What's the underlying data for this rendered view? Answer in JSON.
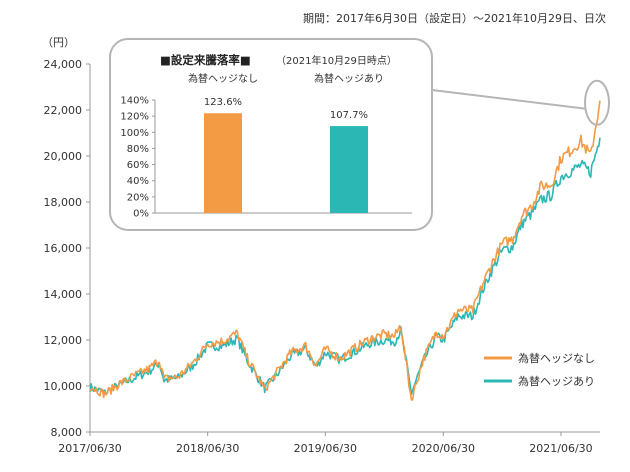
{
  "header": {
    "period": "期間：2017年6月30日（設定日）～2021年10月29日、日次"
  },
  "chart_data": [
    {
      "type": "line",
      "title": "",
      "ylabel": "（円）",
      "xlabel": "",
      "ylim": [
        8000,
        24000
      ],
      "y_ticks": [
        8000,
        10000,
        12000,
        14000,
        16000,
        18000,
        20000,
        22000,
        24000
      ],
      "y_tick_labels": [
        "8,000",
        "10,000",
        "12,000",
        "14,000",
        "16,000",
        "18,000",
        "20,000",
        "22,000",
        "24,000"
      ],
      "x_tick_labels": [
        "2017/06/30",
        "2018/06/30",
        "2019/06/30",
        "2020/06/30",
        "2021/06/30"
      ],
      "x_range": [
        "2017/06/30",
        "2021/10/29"
      ],
      "grid": false,
      "legend": "bottom-right",
      "series": [
        {
          "name": "為替ヘッジなし",
          "color": "#f39a45",
          "x": [
            "2017/06/30",
            "2017/08/15",
            "2017/09/30",
            "2017/11/15",
            "2017/12/31",
            "2018/01/31",
            "2018/02/15",
            "2018/03/31",
            "2018/05/15",
            "2018/06/30",
            "2018/08/15",
            "2018/09/30",
            "2018/10/31",
            "2018/12/24",
            "2019/01/31",
            "2019/03/15",
            "2019/04/30",
            "2019/06/01",
            "2019/06/30",
            "2019/08/15",
            "2019/09/30",
            "2019/11/15",
            "2019/12/31",
            "2020/01/31",
            "2020/02/19",
            "2020/03/23",
            "2020/04/30",
            "2020/06/08",
            "2020/06/30",
            "2020/08/15",
            "2020/09/30",
            "2020/10/31",
            "2020/11/30",
            "2020/12/31",
            "2021/01/31",
            "2021/02/28",
            "2021/03/31",
            "2021/04/30",
            "2021/05/31",
            "2021/06/30",
            "2021/07/31",
            "2021/08/31",
            "2021/09/30",
            "2021/10/29"
          ],
          "values": [
            10000,
            9650,
            10100,
            10450,
            10750,
            11150,
            10300,
            10400,
            11000,
            11850,
            11950,
            12300,
            11200,
            9850,
            10600,
            11450,
            11750,
            10900,
            11600,
            11200,
            11650,
            12050,
            12250,
            12150,
            12650,
            9400,
            11200,
            12350,
            12200,
            13300,
            13300,
            14450,
            15400,
            16200,
            16400,
            17400,
            17850,
            18700,
            18750,
            19900,
            20250,
            20650,
            20000,
            22400
          ]
        },
        {
          "name": "為替ヘッジあり",
          "color": "#2bb7b3",
          "x": [
            "2017/06/30",
            "2017/08/15",
            "2017/09/30",
            "2017/11/15",
            "2017/12/31",
            "2018/01/31",
            "2018/02/15",
            "2018/03/31",
            "2018/05/15",
            "2018/06/30",
            "2018/08/15",
            "2018/09/30",
            "2018/10/31",
            "2018/12/24",
            "2019/01/31",
            "2019/03/15",
            "2019/04/30",
            "2019/06/01",
            "2019/06/30",
            "2019/08/15",
            "2019/09/30",
            "2019/11/15",
            "2019/12/31",
            "2020/01/31",
            "2020/02/19",
            "2020/03/23",
            "2020/04/30",
            "2020/06/08",
            "2020/06/30",
            "2020/08/15",
            "2020/09/30",
            "2020/10/31",
            "2020/11/30",
            "2020/12/31",
            "2021/01/31",
            "2021/02/28",
            "2021/03/31",
            "2021/04/30",
            "2021/05/31",
            "2021/06/30",
            "2021/07/31",
            "2021/08/31",
            "2021/09/30",
            "2021/10/29"
          ],
          "values": [
            9950,
            9700,
            10050,
            10350,
            10650,
            11000,
            10250,
            10350,
            10900,
            11750,
            11750,
            12050,
            11100,
            9900,
            10500,
            11300,
            11600,
            10850,
            11450,
            11150,
            11500,
            11850,
            12000,
            11950,
            12400,
            9700,
            11100,
            12150,
            12000,
            13050,
            13050,
            14200,
            15100,
            15900,
            16050,
            17050,
            17500,
            18100,
            18300,
            19100,
            19350,
            19600,
            19300,
            20800
          ]
        }
      ]
    },
    {
      "type": "bar",
      "title": "■設定来騰落率■",
      "subtitle": "（2021年10月29日時点）",
      "categories": [
        "為替ヘッジなし",
        "為替ヘッジあり"
      ],
      "values": [
        123.6,
        107.7
      ],
      "value_labels": [
        "123.6%",
        "107.7%"
      ],
      "colors": [
        "#f39a45",
        "#2bb7b3"
      ],
      "ylim": [
        0,
        140
      ],
      "y_ticks": [
        0,
        20,
        40,
        60,
        80,
        100,
        120,
        140
      ],
      "y_tick_labels": [
        "0%",
        "20%",
        "40%",
        "60%",
        "80%",
        "100%",
        "120%",
        "140%"
      ]
    }
  ]
}
